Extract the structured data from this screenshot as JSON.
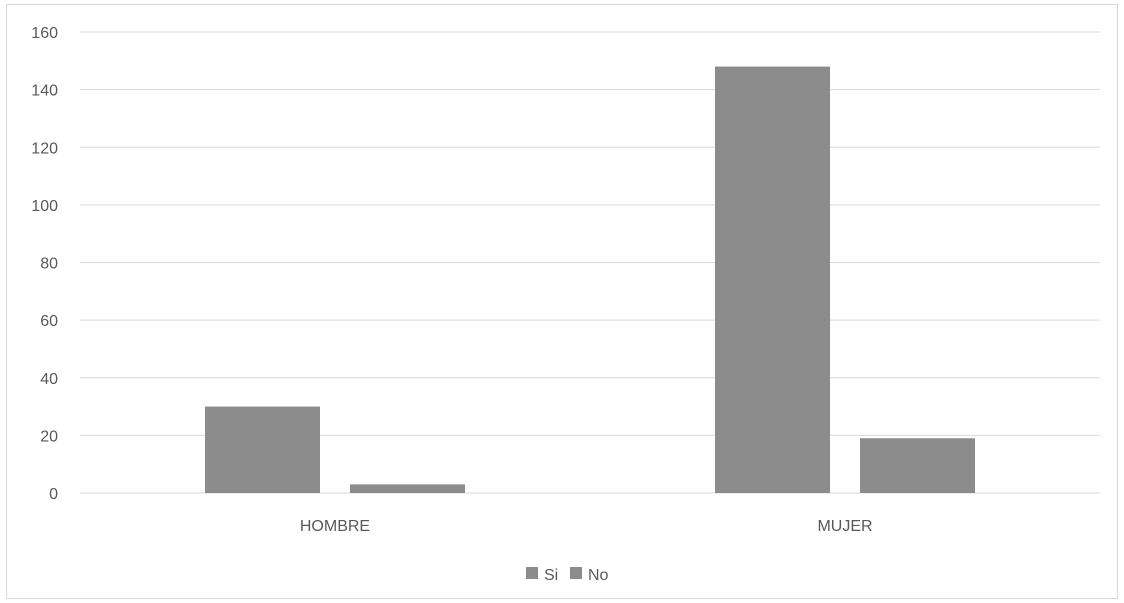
{
  "chart_data": {
    "type": "bar",
    "categories": [
      "HOMBRE",
      "MUJER"
    ],
    "series": [
      {
        "name": "Si",
        "values": [
          30,
          148
        ],
        "color": "#8c8c8c"
      },
      {
        "name": "No",
        "values": [
          3,
          19
        ],
        "color": "#8c8c8c"
      }
    ],
    "title": "",
    "xlabel": "",
    "ylabel": "",
    "ylim": [
      0,
      160
    ],
    "yticks": [
      0,
      20,
      40,
      60,
      80,
      100,
      120,
      140,
      160
    ],
    "grid": true,
    "legend_position": "bottom"
  }
}
